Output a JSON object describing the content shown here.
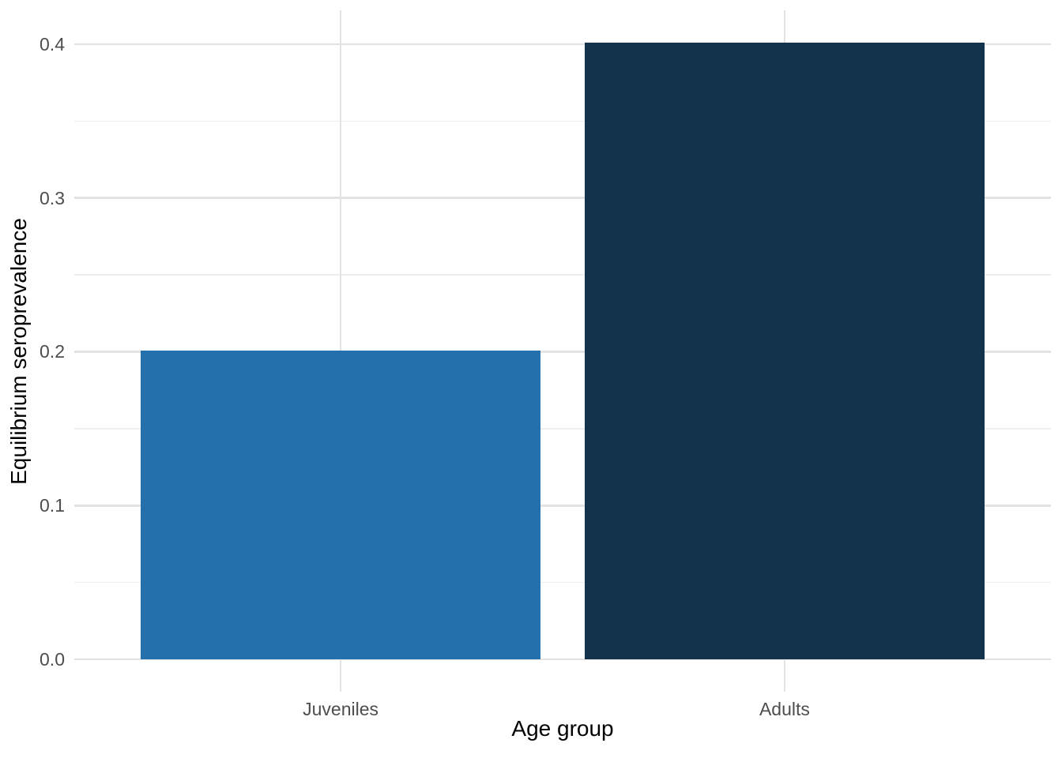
{
  "chart_data": {
    "type": "bar",
    "categories": [
      "Juveniles",
      "Adults"
    ],
    "values": [
      0.201,
      0.401
    ],
    "bar_colors": [
      "#2470ad",
      "#13334d"
    ],
    "title": "",
    "xlabel": "Age group",
    "ylabel": "Equilibrium seroprevalence",
    "ylim": [
      -0.021,
      0.422
    ],
    "yticks": [
      0,
      0.1,
      0.2,
      0.3,
      0.4
    ],
    "ytick_labels": [
      "0.0",
      "0.1",
      "0.2",
      "0.3",
      "0.4"
    ],
    "yticks_minor": [
      0.05,
      0.15,
      0.25,
      0.35
    ],
    "grid": true,
    "legend": false,
    "theme": {
      "background": "#ffffff",
      "grid_major_color": "#e3e3e3",
      "grid_minor_color": "#eeeeee",
      "axis_text_color": "#4d4d4d",
      "axis_title_color": "#000000"
    }
  }
}
